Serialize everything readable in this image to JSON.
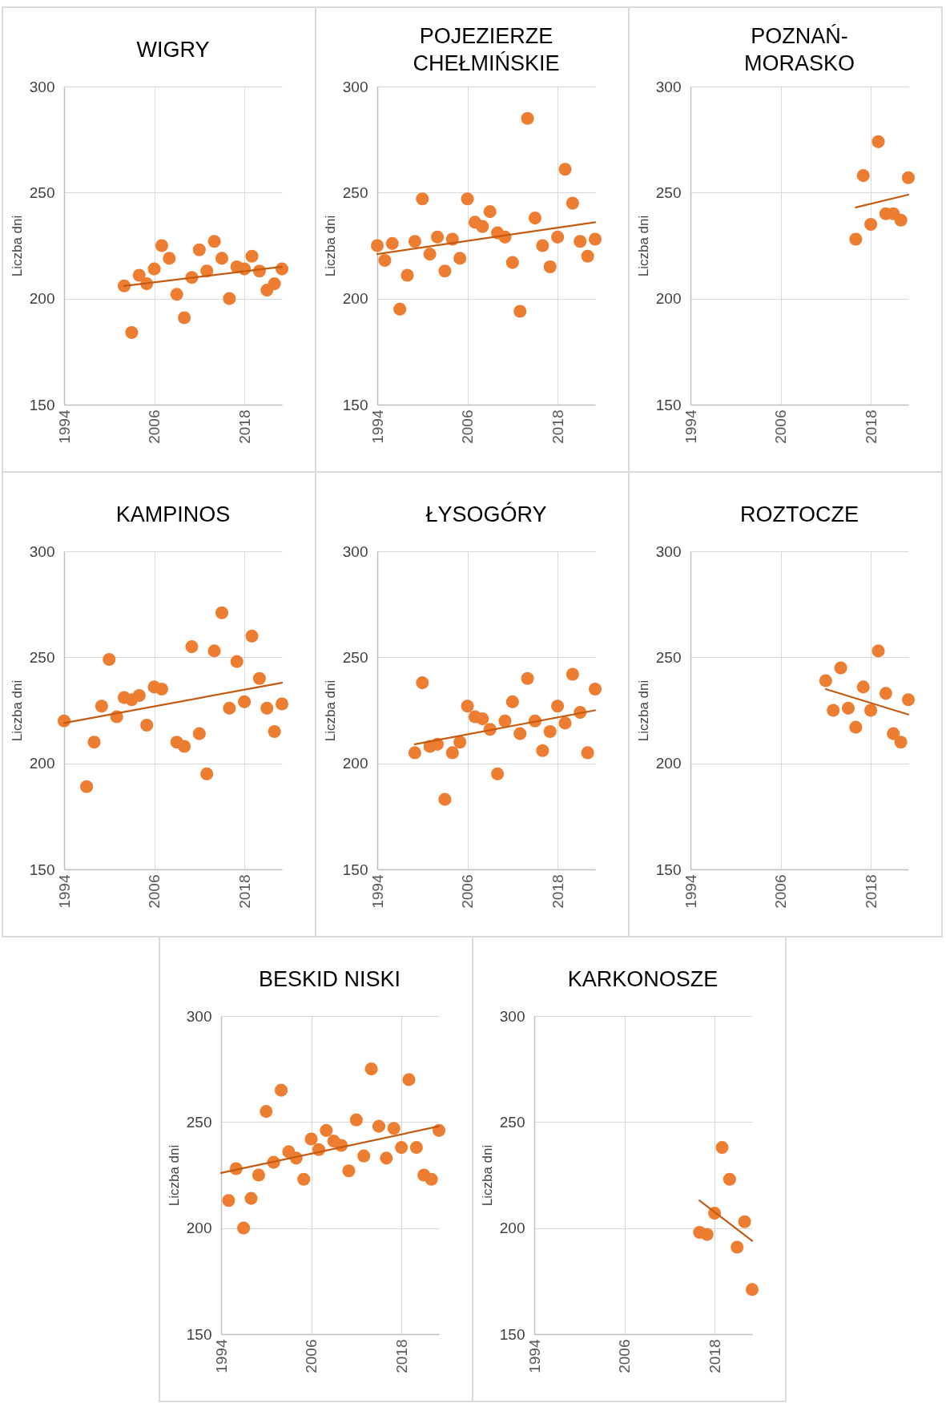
{
  "chart_data": [
    {
      "type": "scatter",
      "title": "WIGRY",
      "ylabel": "Liczba dni",
      "xlim": [
        1994,
        2023
      ],
      "xticks": [
        1994,
        2006,
        2018
      ],
      "ylim": [
        150,
        300
      ],
      "yticks": [
        150,
        200,
        250,
        300
      ],
      "grid": true,
      "series": [
        {
          "marker": "circle",
          "color": "#ed7d31",
          "x": [
            2002,
            2003,
            2004,
            2005,
            2006,
            2007,
            2008,
            2009,
            2010,
            2011,
            2012,
            2013,
            2014,
            2015,
            2016,
            2017,
            2018,
            2019,
            2020,
            2021,
            2022,
            2023
          ],
          "values": [
            206,
            184,
            211,
            207,
            214,
            225,
            219,
            202,
            191,
            210,
            223,
            213,
            227,
            219,
            200,
            215,
            214,
            220,
            213,
            204,
            207,
            214
          ]
        },
        {
          "type": "line",
          "color": "#c55a11",
          "x": [
            2002,
            2023
          ],
          "values": [
            206,
            215
          ]
        }
      ]
    },
    {
      "type": "scatter",
      "title": "POJEZIERZE CHEŁMIŃSKIE",
      "ylabel": "Liczba dni",
      "xlim": [
        1994,
        2023
      ],
      "xticks": [
        1994,
        2006,
        2018
      ],
      "ylim": [
        150,
        300
      ],
      "yticks": [
        150,
        200,
        250,
        300
      ],
      "grid": true,
      "series": [
        {
          "marker": "circle",
          "color": "#ed7d31",
          "x": [
            1994,
            1995,
            1996,
            1997,
            1998,
            1999,
            2000,
            2001,
            2002,
            2003,
            2004,
            2005,
            2006,
            2007,
            2008,
            2009,
            2010,
            2011,
            2012,
            2013,
            2014,
            2015,
            2016,
            2017,
            2018,
            2019,
            2020,
            2021,
            2022,
            2023
          ],
          "values": [
            225,
            218,
            226,
            195,
            211,
            227,
            247,
            221,
            229,
            213,
            228,
            219,
            247,
            236,
            234,
            241,
            231,
            229,
            217,
            194,
            285,
            238,
            225,
            215,
            229,
            261,
            245,
            227,
            220,
            228
          ]
        },
        {
          "type": "line",
          "color": "#c55a11",
          "x": [
            1994,
            2023
          ],
          "values": [
            221,
            236
          ]
        }
      ]
    },
    {
      "type": "scatter",
      "title": "POZNAŃ-MORASKO",
      "ylabel": "Liczba dni",
      "xlim": [
        1994,
        2023
      ],
      "xticks": [
        1994,
        2006,
        2018
      ],
      "ylim": [
        150,
        300
      ],
      "yticks": [
        150,
        200,
        250,
        300
      ],
      "grid": true,
      "series": [
        {
          "marker": "circle",
          "color": "#ed7d31",
          "x": [
            2016,
            2017,
            2018,
            2019,
            2020,
            2021,
            2022,
            2023
          ],
          "values": [
            228,
            258,
            235,
            274,
            240,
            240,
            237,
            257
          ]
        },
        {
          "type": "line",
          "color": "#c55a11",
          "x": [
            2016,
            2023
          ],
          "values": [
            243,
            249
          ]
        }
      ]
    },
    {
      "type": "scatter",
      "title": "KAMPINOS",
      "ylabel": "Liczba dni",
      "xlim": [
        1994,
        2023
      ],
      "xticks": [
        1994,
        2006,
        2018
      ],
      "ylim": [
        150,
        300
      ],
      "yticks": [
        150,
        200,
        250,
        300
      ],
      "grid": true,
      "series": [
        {
          "marker": "circle",
          "color": "#ed7d31",
          "x": [
            1994,
            1997,
            1998,
            1999,
            2000,
            2001,
            2002,
            2003,
            2004,
            2005,
            2006,
            2007,
            2009,
            2010,
            2011,
            2012,
            2013,
            2014,
            2015,
            2016,
            2017,
            2018,
            2019,
            2020,
            2021,
            2022,
            2023
          ],
          "values": [
            220,
            189,
            210,
            227,
            249,
            222,
            231,
            230,
            232,
            218,
            236,
            235,
            210,
            208,
            255,
            214,
            195,
            253,
            271,
            226,
            248,
            229,
            260,
            240,
            226,
            215,
            228
          ]
        },
        {
          "type": "line",
          "color": "#c55a11",
          "x": [
            1994,
            2023
          ],
          "values": [
            219,
            238
          ]
        }
      ]
    },
    {
      "type": "scatter",
      "title": "ŁYSOGÓRY",
      "ylabel": "Liczba dni",
      "xlim": [
        1994,
        2023
      ],
      "xticks": [
        1994,
        2006,
        2018
      ],
      "ylim": [
        150,
        300
      ],
      "yticks": [
        150,
        200,
        250,
        300
      ],
      "grid": true,
      "series": [
        {
          "marker": "circle",
          "color": "#ed7d31",
          "x": [
            1999,
            2000,
            2001,
            2002,
            2003,
            2004,
            2005,
            2006,
            2007,
            2008,
            2009,
            2010,
            2011,
            2012,
            2013,
            2014,
            2015,
            2016,
            2017,
            2018,
            2019,
            2020,
            2021,
            2022,
            2023
          ],
          "values": [
            205,
            238,
            208,
            209,
            183,
            205,
            210,
            227,
            222,
            221,
            216,
            195,
            220,
            229,
            214,
            240,
            220,
            206,
            215,
            227,
            219,
            242,
            224,
            205,
            235
          ]
        },
        {
          "type": "line",
          "color": "#c55a11",
          "x": [
            1999,
            2023
          ],
          "values": [
            209,
            225
          ]
        }
      ]
    },
    {
      "type": "scatter",
      "title": "ROZTOCZE",
      "ylabel": "Liczba dni",
      "xlim": [
        1994,
        2023
      ],
      "xticks": [
        1994,
        2006,
        2018
      ],
      "ylim": [
        150,
        300
      ],
      "yticks": [
        150,
        200,
        250,
        300
      ],
      "grid": true,
      "series": [
        {
          "marker": "circle",
          "color": "#ed7d31",
          "x": [
            2012,
            2013,
            2014,
            2015,
            2016,
            2017,
            2018,
            2019,
            2020,
            2021,
            2022,
            2023
          ],
          "values": [
            239,
            225,
            245,
            226,
            217,
            236,
            225,
            253,
            233,
            214,
            210,
            230
          ]
        },
        {
          "type": "line",
          "color": "#c55a11",
          "x": [
            2012,
            2023
          ],
          "values": [
            235,
            223
          ]
        }
      ]
    },
    {
      "type": "scatter",
      "title": "BESKID NISKI",
      "ylabel": "Liczba dni",
      "xlim": [
        1994,
        2023
      ],
      "xticks": [
        1994,
        2006,
        2018
      ],
      "ylim": [
        150,
        300
      ],
      "yticks": [
        150,
        200,
        250,
        300
      ],
      "grid": true,
      "series": [
        {
          "marker": "circle",
          "color": "#ed7d31",
          "x": [
            1995,
            1996,
            1997,
            1998,
            1999,
            2000,
            2001,
            2002,
            2003,
            2004,
            2005,
            2006,
            2007,
            2008,
            2009,
            2010,
            2011,
            2012,
            2013,
            2014,
            2015,
            2016,
            2017,
            2018,
            2019,
            2020,
            2021,
            2022,
            2023
          ],
          "values": [
            213,
            228,
            200,
            214,
            225,
            255,
            231,
            265,
            236,
            233,
            223,
            242,
            237,
            246,
            241,
            239,
            227,
            251,
            234,
            275,
            248,
            233,
            247,
            238,
            270,
            238,
            225,
            223,
            246
          ]
        },
        {
          "type": "line",
          "color": "#c55a11",
          "x": [
            1994,
            2023
          ],
          "values": [
            226,
            248
          ]
        }
      ]
    },
    {
      "type": "scatter",
      "title": "KARKONOSZE",
      "ylabel": "Liczba dni",
      "xlim": [
        1994,
        2023
      ],
      "xticks": [
        1994,
        2006,
        2018
      ],
      "ylim": [
        150,
        300
      ],
      "yticks": [
        150,
        200,
        250,
        300
      ],
      "grid": true,
      "series": [
        {
          "marker": "circle",
          "color": "#ed7d31",
          "x": [
            2016,
            2017,
            2018,
            2019,
            2020,
            2021,
            2022,
            2023
          ],
          "values": [
            198,
            197,
            207,
            238,
            223,
            191,
            203,
            171
          ]
        },
        {
          "type": "line",
          "color": "#c55a11",
          "x": [
            2016,
            2023
          ],
          "values": [
            213,
            194
          ]
        }
      ]
    }
  ]
}
